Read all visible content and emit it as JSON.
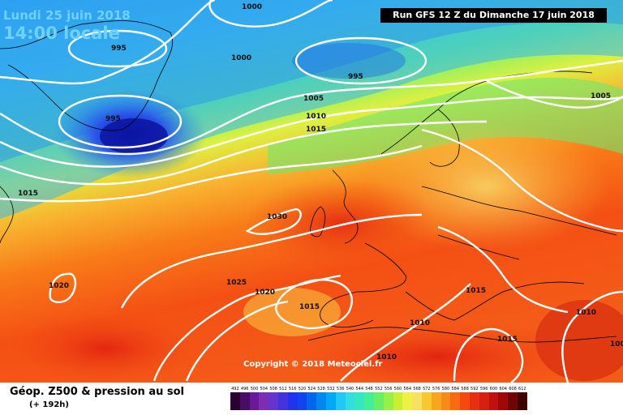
{
  "header": {
    "date_label": "Lundi 25 juin 2018",
    "time_label": "14:00 locale",
    "run_label": "Run GFS 12 Z du Dimanche 17 juin 2018"
  },
  "footer": {
    "title": "Géop. Z500 & pression au sol",
    "subtitle": "(+ 192h)",
    "copyright": "Copyright © 2018 Meteociel.fr"
  },
  "isobar_labels": [
    {
      "id": "iso-1000-top",
      "text": "1000"
    },
    {
      "id": "iso-995-greenland",
      "text": "995"
    },
    {
      "id": "iso-1000-mid",
      "text": "1000"
    },
    {
      "id": "iso-995-north",
      "text": "995"
    },
    {
      "id": "iso-995-low",
      "text": "995"
    },
    {
      "id": "iso-1005-north",
      "text": "1005"
    },
    {
      "id": "iso-1010-north",
      "text": "1010"
    },
    {
      "id": "iso-1015-north",
      "text": "1015"
    },
    {
      "id": "iso-1005-east",
      "text": "1005"
    },
    {
      "id": "iso-1015-west",
      "text": "1015"
    },
    {
      "id": "iso-1030-high",
      "text": "1030"
    },
    {
      "id": "iso-1020-west",
      "text": "1020"
    },
    {
      "id": "iso-1025-center",
      "text": "1025"
    },
    {
      "id": "iso-1020-center",
      "text": "1020"
    },
    {
      "id": "iso-1015-iberia",
      "text": "1015"
    },
    {
      "id": "iso-1015-med",
      "text": "1015"
    },
    {
      "id": "iso-1010-east",
      "text": "1010"
    },
    {
      "id": "iso-1010-africa",
      "text": "1010"
    },
    {
      "id": "iso-1015-southeast",
      "text": "1015"
    },
    {
      "id": "iso-1010-south",
      "text": "1010"
    },
    {
      "id": "iso-100-edge",
      "text": "100"
    }
  ],
  "scale": {
    "labels": [
      "492",
      "496",
      "500",
      "504",
      "508",
      "512",
      "516",
      "520",
      "524",
      "528",
      "532",
      "536",
      "540",
      "544",
      "548",
      "552",
      "556",
      "560",
      "564",
      "568",
      "572",
      "576",
      "580",
      "584",
      "588",
      "592",
      "596",
      "600",
      "604",
      "608",
      "612"
    ],
    "colors": [
      "#2a0033",
      "#4a0d66",
      "#6a1a99",
      "#7d2db3",
      "#6633cc",
      "#4433dd",
      "#2233ee",
      "#1144ee",
      "#0066ee",
      "#0088f0",
      "#00a8f5",
      "#22c8f5",
      "#33dde0",
      "#33e8c0",
      "#44ee99",
      "#66f066",
      "#99f044",
      "#c8f033",
      "#eef044",
      "#f8e060",
      "#f8c830",
      "#f8a520",
      "#f88a18",
      "#f86a10",
      "#f44a10",
      "#e83010",
      "#d82010",
      "#c01010",
      "#a00808",
      "#700404",
      "#400000"
    ]
  },
  "legend_colors": {
    "isobar": "#ffffff",
    "coastline": "#000000"
  }
}
